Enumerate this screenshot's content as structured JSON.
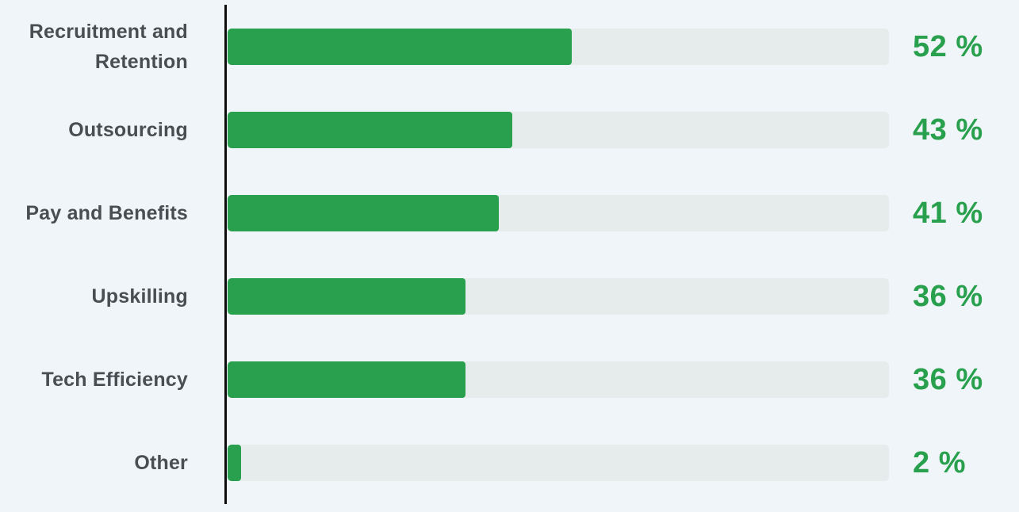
{
  "chart_data": {
    "type": "bar",
    "orientation": "horizontal",
    "categories": [
      "Recruitment and Retention",
      "Outsourcing",
      "Pay and Benefits",
      "Upskilling",
      "Tech Efficiency",
      "Other"
    ],
    "values": [
      52,
      43,
      41,
      36,
      36,
      2
    ],
    "value_labels": [
      "52 %",
      "43 %",
      "41 %",
      "36 %",
      "36 %",
      "2 %"
    ],
    "xlim": [
      0,
      100
    ],
    "grid": false,
    "colors": {
      "bar": "#29a04d",
      "track": "#e6ebec",
      "axis": "#0d0d0d",
      "category_text": "#4a4d52",
      "value_text": "#29a04d",
      "background": "#eff5f8"
    }
  }
}
